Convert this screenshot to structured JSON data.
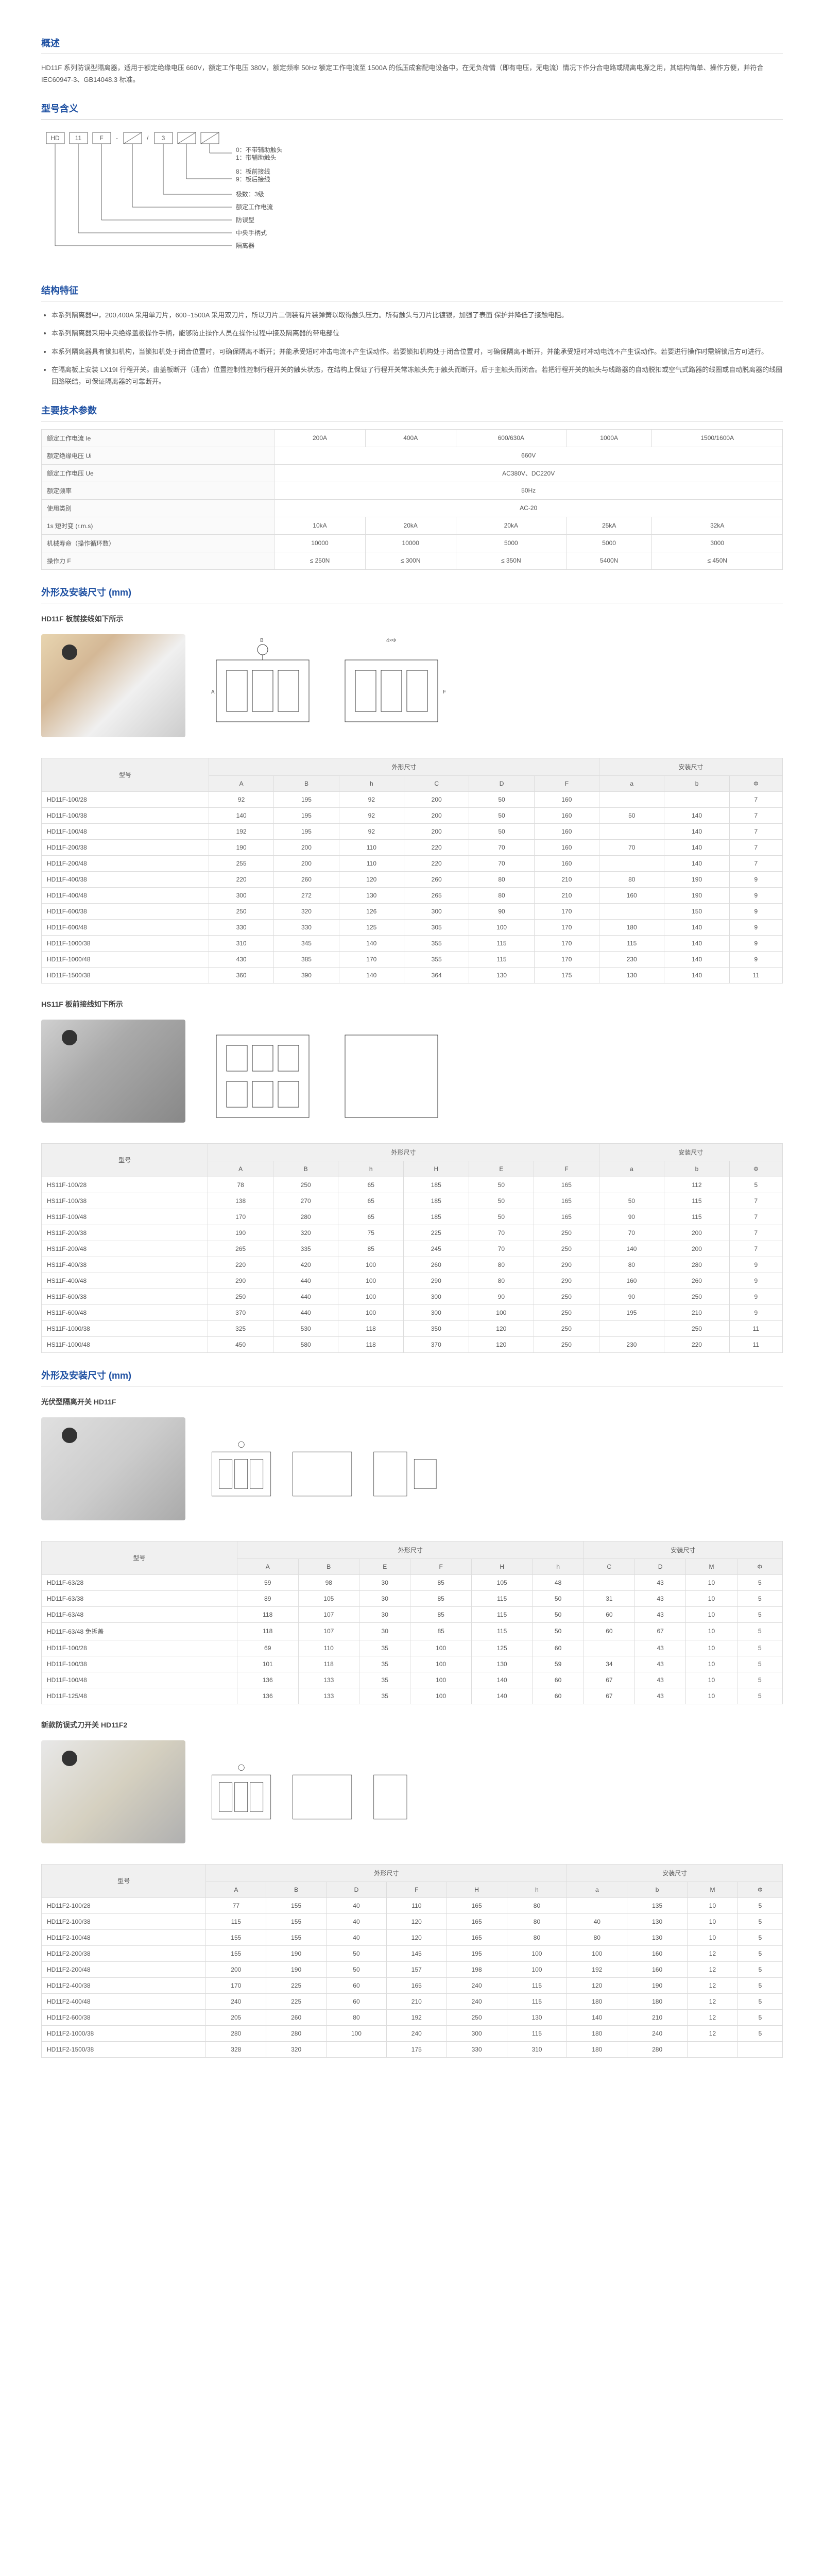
{
  "overview": {
    "title": "概述",
    "text": "HD11F 系列防误型隔离器，适用于额定绝缘电压 660V，额定工作电压 380V，额定频率 50Hz 额定工作电流至 1500A 的低压成套配电设备中。在无负荷情（即有电压，无电流）情况下作分合电路或隔离电源之用，其结构简单、操作方便，并符合 IEC60947-3、GB14048.3 标准。"
  },
  "model": {
    "title": "型号含义",
    "parts": [
      "HD",
      "11",
      "F",
      "-",
      "□",
      "/",
      "3",
      "□"
    ],
    "labels": [
      "0：不带辅助触头",
      "1：带辅助触头",
      "8：板前接线",
      "9：板后接线",
      "极数：3级",
      "额定工作电流",
      "防误型",
      "中央手柄式",
      "隔离器"
    ]
  },
  "features": {
    "title": "结构特征",
    "items": [
      "本系列隔离器中，200,400A 采用单刀片，600~1500A 采用双刀片，所以刀片二侧装有片装弹簧以取得触头压力。所有触头与刀片比镀银，加强了表面 保护并降低了接触电阻。",
      "本系列隔离器采用中央绝缘盖板操作手柄，能够防止操作人员在操作过程中接及隔离器的带电部位",
      "本系列隔离器具有锁扣机构，当锁扣机处于闭合位置时，可确保隔离不断开；并能承受短时冲击电流不产生误动作。若要锁扣机构处于闭合位置时，可确保隔离不断开，并能承受短时冲动电流不产生误动作。若要进行操作时需解锁后方可进行。",
      "在隔离板上安装 LX19I 行程开关。由盖板断开（通合）位置控制性控制行程开关的触头状态，在结构上保证了行程开关常冻触头先于触头而断开。后于主触头而闭合。若把行程开关的触头与线路器的自动脱扣或空气式路器的线圈或自动脱离器的线圈回路联结，可保证隔离器的可靠断开。"
    ]
  },
  "specs": {
    "title": "主要技术参数",
    "rows": [
      {
        "label": "额定工作电流 Ie",
        "vals": [
          "200A",
          "400A",
          "600/630A",
          "1000A",
          "1500/1600A"
        ]
      },
      {
        "label": "额定绝缘电压 Ui",
        "vals": [
          "660V"
        ],
        "colspan": 5
      },
      {
        "label": "额定工作电压 Ue",
        "vals": [
          "AC380V、DC220V"
        ],
        "colspan": 5
      },
      {
        "label": "额定频率",
        "vals": [
          "50Hz"
        ],
        "colspan": 5
      },
      {
        "label": "使用类别",
        "vals": [
          "AC-20"
        ],
        "colspan": 5
      },
      {
        "label": "1s 短时变 (r.m.s)",
        "vals": [
          "10kA",
          "20kA",
          "20kA",
          "25kA",
          "32kA"
        ]
      },
      {
        "label": "机械寿命（操作循环数）",
        "vals": [
          "10000",
          "10000",
          "5000",
          "5000",
          "3000"
        ]
      },
      {
        "label": "操作力 F",
        "vals": [
          "≤ 250N",
          "≤ 300N",
          "≤ 350N",
          "5400N",
          "≤ 450N"
        ]
      }
    ]
  },
  "dims": {
    "title": "外形及安装尺寸 (mm)",
    "hd11f": {
      "subtitle": "HD11F 板前接线如下所示",
      "headers": [
        "型号",
        "A",
        "B",
        "h",
        "C",
        "D",
        "F",
        "a",
        "b",
        "Φ"
      ],
      "group1": "外形尺寸",
      "group2": "安装尺寸",
      "rows": [
        [
          "HD11F-100/28",
          "92",
          "195",
          "92",
          "200",
          "50",
          "160",
          "",
          "",
          "7"
        ],
        [
          "HD11F-100/38",
          "140",
          "195",
          "92",
          "200",
          "50",
          "160",
          "50",
          "140",
          "7"
        ],
        [
          "HD11F-100/48",
          "192",
          "195",
          "92",
          "200",
          "50",
          "160",
          "",
          "140",
          "7"
        ],
        [
          "HD11F-200/38",
          "190",
          "200",
          "110",
          "220",
          "70",
          "160",
          "70",
          "140",
          "7"
        ],
        [
          "HD11F-200/48",
          "255",
          "200",
          "110",
          "220",
          "70",
          "160",
          "",
          "140",
          "7"
        ],
        [
          "HD11F-400/38",
          "220",
          "260",
          "120",
          "260",
          "80",
          "210",
          "80",
          "190",
          "9"
        ],
        [
          "HD11F-400/48",
          "300",
          "272",
          "130",
          "265",
          "80",
          "210",
          "160",
          "190",
          "9"
        ],
        [
          "HD11F-600/38",
          "250",
          "320",
          "126",
          "300",
          "90",
          "170",
          "",
          "150",
          "9"
        ],
        [
          "HD11F-600/48",
          "330",
          "330",
          "125",
          "305",
          "100",
          "170",
          "180",
          "140",
          "9"
        ],
        [
          "HD11F-1000/38",
          "310",
          "345",
          "140",
          "355",
          "115",
          "170",
          "115",
          "140",
          "9"
        ],
        [
          "HD11F-1000/48",
          "430",
          "385",
          "170",
          "355",
          "115",
          "170",
          "230",
          "140",
          "9"
        ],
        [
          "HD11F-1500/38",
          "360",
          "390",
          "140",
          "364",
          "130",
          "175",
          "130",
          "140",
          "11"
        ]
      ]
    },
    "hs11f": {
      "subtitle": "HS11F 板前接线如下所示",
      "headers": [
        "型号",
        "A",
        "B",
        "h",
        "H",
        "E",
        "F",
        "a",
        "b",
        "Φ"
      ],
      "rows": [
        [
          "HS11F-100/28",
          "78",
          "250",
          "65",
          "185",
          "50",
          "165",
          "",
          "112",
          "5"
        ],
        [
          "HS11F-100/38",
          "138",
          "270",
          "65",
          "185",
          "50",
          "165",
          "50",
          "115",
          "7"
        ],
        [
          "HS11F-100/48",
          "170",
          "280",
          "65",
          "185",
          "50",
          "165",
          "90",
          "115",
          "7"
        ],
        [
          "HS11F-200/38",
          "190",
          "320",
          "75",
          "225",
          "70",
          "250",
          "70",
          "200",
          "7"
        ],
        [
          "HS11F-200/48",
          "265",
          "335",
          "85",
          "245",
          "70",
          "250",
          "140",
          "200",
          "7"
        ],
        [
          "HS11F-400/38",
          "220",
          "420",
          "100",
          "260",
          "80",
          "290",
          "80",
          "280",
          "9"
        ],
        [
          "HS11F-400/48",
          "290",
          "440",
          "100",
          "290",
          "80",
          "290",
          "160",
          "260",
          "9"
        ],
        [
          "HS11F-600/38",
          "250",
          "440",
          "100",
          "300",
          "90",
          "250",
          "90",
          "250",
          "9"
        ],
        [
          "HS11F-600/48",
          "370",
          "440",
          "100",
          "300",
          "100",
          "250",
          "195",
          "210",
          "9"
        ],
        [
          "HS11F-1000/38",
          "325",
          "530",
          "118",
          "350",
          "120",
          "250",
          "",
          "250",
          "11"
        ],
        [
          "HS11F-1000/48",
          "450",
          "580",
          "118",
          "370",
          "120",
          "250",
          "230",
          "220",
          "11"
        ]
      ]
    },
    "pv": {
      "title": "外形及安装尺寸 (mm)",
      "subtitle": "光伏型隔离开关 HD11F",
      "headers": [
        "型号",
        "A",
        "B",
        "E",
        "F",
        "H",
        "h",
        "C",
        "D",
        "M",
        "Φ"
      ],
      "rows": [
        [
          "HD11F-63/28",
          "59",
          "98",
          "30",
          "85",
          "105",
          "48",
          "",
          "43",
          "10",
          "5"
        ],
        [
          "HD11F-63/38",
          "89",
          "105",
          "30",
          "85",
          "115",
          "50",
          "31",
          "43",
          "10",
          "5"
        ],
        [
          "HD11F-63/48",
          "118",
          "107",
          "30",
          "85",
          "115",
          "50",
          "60",
          "43",
          "10",
          "5"
        ],
        [
          "HD11F-63/48 免拆盖",
          "118",
          "107",
          "30",
          "85",
          "115",
          "50",
          "60",
          "67",
          "10",
          "5"
        ],
        [
          "HD11F-100/28",
          "69",
          "110",
          "35",
          "100",
          "125",
          "60",
          "",
          "43",
          "10",
          "5"
        ],
        [
          "HD11F-100/38",
          "101",
          "118",
          "35",
          "100",
          "130",
          "59",
          "34",
          "43",
          "10",
          "5"
        ],
        [
          "HD11F-100/48",
          "136",
          "133",
          "35",
          "100",
          "140",
          "60",
          "67",
          "43",
          "10",
          "5"
        ],
        [
          "HD11F-125/48",
          "136",
          "133",
          "35",
          "100",
          "140",
          "60",
          "67",
          "43",
          "10",
          "5"
        ]
      ]
    },
    "hd11f2": {
      "subtitle": "新款防误式刀开关 HD11F2",
      "headers": [
        "型号",
        "A",
        "B",
        "D",
        "F",
        "H",
        "h",
        "a",
        "b",
        "M",
        "Φ"
      ],
      "rows": [
        [
          "HD11F2-100/28",
          "77",
          "155",
          "40",
          "110",
          "165",
          "80",
          "",
          "135",
          "10",
          "5"
        ],
        [
          "HD11F2-100/38",
          "115",
          "155",
          "40",
          "120",
          "165",
          "80",
          "40",
          "130",
          "10",
          "5"
        ],
        [
          "HD11F2-100/48",
          "155",
          "155",
          "40",
          "120",
          "165",
          "80",
          "80",
          "130",
          "10",
          "5"
        ],
        [
          "HD11F2-200/38",
          "155",
          "190",
          "50",
          "145",
          "195",
          "100",
          "100",
          "160",
          "12",
          "5"
        ],
        [
          "HD11F2-200/48",
          "200",
          "190",
          "50",
          "157",
          "198",
          "100",
          "192",
          "160",
          "12",
          "5"
        ],
        [
          "HD11F2-400/38",
          "170",
          "225",
          "60",
          "165",
          "240",
          "115",
          "120",
          "190",
          "12",
          "5"
        ],
        [
          "HD11F2-400/48",
          "240",
          "225",
          "60",
          "210",
          "240",
          "115",
          "180",
          "180",
          "12",
          "5"
        ],
        [
          "HD11F2-600/38",
          "205",
          "260",
          "80",
          "192",
          "250",
          "130",
          "140",
          "210",
          "12",
          "5"
        ],
        [
          "HD11F2-1000/38",
          "280",
          "280",
          "100",
          "240",
          "300",
          "115",
          "180",
          "240",
          "12",
          "5"
        ],
        [
          "HD11F2-1500/38",
          "328",
          "320",
          "",
          "175",
          "330",
          "310",
          "180",
          "280",
          "",
          ""
        ]
      ]
    }
  }
}
